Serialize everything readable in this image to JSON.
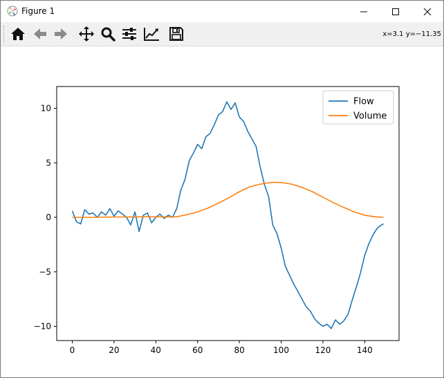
{
  "window": {
    "title": "Figure 1"
  },
  "toolbar": {
    "buttons": [
      {
        "name": "home-icon",
        "tooltip": "Home"
      },
      {
        "name": "back-arrow-icon",
        "tooltip": "Back"
      },
      {
        "name": "forward-arrow-icon",
        "tooltip": "Forward"
      },
      {
        "name": "pan-move-icon",
        "tooltip": "Pan"
      },
      {
        "name": "zoom-magnifier-icon",
        "tooltip": "Zoom"
      },
      {
        "name": "subplots-sliders-icon",
        "tooltip": "Subplots"
      },
      {
        "name": "edit-axes-icon",
        "tooltip": "Customize"
      },
      {
        "name": "save-disk-icon",
        "tooltip": "Save"
      }
    ],
    "coord_readout": "x=3.1 y=−11.35"
  },
  "chart_data": {
    "type": "line",
    "title": "",
    "xlabel": "",
    "ylabel": "",
    "xlim": [
      -7.45,
      156.45
    ],
    "ylim": [
      -11.3,
      12.0
    ],
    "xticks": [
      0,
      20,
      40,
      60,
      80,
      100,
      120,
      140
    ],
    "xtick_labels": [
      "0",
      "20",
      "40",
      "60",
      "80",
      "100",
      "120",
      "140"
    ],
    "yticks": [
      -10,
      -5,
      0,
      5,
      10
    ],
    "ytick_labels": [
      "−10",
      "−5",
      "0",
      "5",
      "10"
    ],
    "legend": {
      "position": "top-right",
      "entries": [
        "Flow",
        "Volume"
      ]
    },
    "series": [
      {
        "name": "Flow",
        "color": "#1f77b4",
        "x": [
          0,
          2,
          4,
          6,
          8,
          10,
          12,
          14,
          16,
          18,
          20,
          22,
          24,
          26,
          28,
          30,
          32,
          34,
          36,
          38,
          40,
          42,
          44,
          46,
          48,
          50,
          52,
          54,
          56,
          58,
          60,
          62,
          64,
          66,
          68,
          70,
          72,
          74,
          76,
          78,
          80,
          82,
          84,
          86,
          88,
          90,
          92,
          94,
          96,
          98,
          100,
          102,
          104,
          106,
          108,
          110,
          112,
          114,
          116,
          118,
          120,
          122,
          124,
          126,
          128,
          130,
          132,
          134,
          136,
          138,
          140,
          142,
          144,
          146,
          148,
          149
        ],
        "values": [
          0.6,
          -0.4,
          -0.6,
          0.7,
          0.3,
          0.4,
          0.0,
          0.5,
          0.2,
          0.8,
          0.1,
          0.6,
          0.3,
          0.0,
          -0.7,
          0.5,
          -1.3,
          0.2,
          0.4,
          -0.5,
          0.0,
          0.3,
          -0.1,
          0.2,
          0.0,
          0.8,
          2.5,
          3.5,
          5.2,
          5.9,
          6.7,
          6.3,
          7.4,
          7.7,
          8.5,
          9.4,
          9.7,
          10.6,
          9.9,
          10.5,
          9.2,
          8.8,
          7.9,
          7.2,
          6.5,
          4.6,
          3.0,
          1.9,
          -0.7,
          -1.5,
          -2.8,
          -4.5,
          -5.3,
          -6.1,
          -6.8,
          -7.5,
          -8.2,
          -8.6,
          -9.3,
          -9.7,
          -10.0,
          -9.8,
          -10.2,
          -9.4,
          -9.8,
          -9.5,
          -8.9,
          -7.6,
          -6.4,
          -5.1,
          -3.5,
          -2.4,
          -1.6,
          -1.0,
          -0.7,
          -0.6
        ]
      },
      {
        "name": "Volume",
        "color": "#ff7f0e",
        "x": [
          0,
          5,
          10,
          15,
          20,
          25,
          30,
          35,
          40,
          45,
          50,
          55,
          60,
          65,
          70,
          75,
          80,
          85,
          90,
          95,
          100,
          105,
          110,
          115,
          120,
          125,
          130,
          135,
          140,
          145,
          149
        ],
        "values": [
          0.0,
          0.0,
          0.0,
          0.02,
          0.03,
          0.03,
          0.04,
          0.05,
          0.05,
          0.04,
          0.05,
          0.25,
          0.5,
          0.85,
          1.3,
          1.8,
          2.35,
          2.8,
          3.05,
          3.2,
          3.2,
          3.05,
          2.75,
          2.35,
          1.85,
          1.35,
          0.9,
          0.5,
          0.2,
          0.05,
          0.0
        ]
      }
    ]
  }
}
